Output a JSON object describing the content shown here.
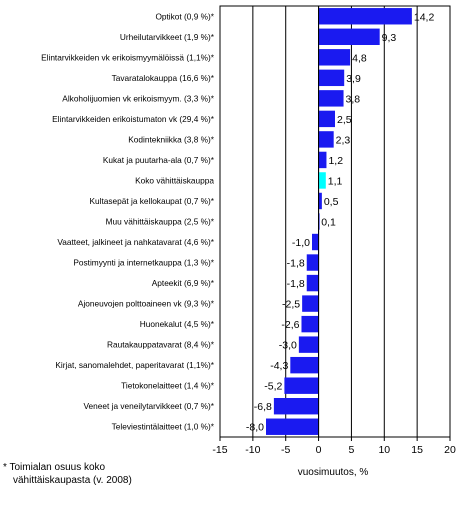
{
  "chart_data": {
    "type": "bar",
    "orientation": "horizontal",
    "categories": [
      "Optikot (0,9 %)*",
      "Urheilutarvikkeet (1,9 %)*",
      "Elintarvikkeiden vk erikoismyymälöissä (1,1%)*",
      "Tavaratalokauppa (16,6 %)*",
      "Alkoholijuomien vk erikoismyym. (3,3 %)*",
      "Elintarvikkeiden erikoistumaton vk (29,4 %)*",
      "Kodintekniikka (3,8 %)*",
      "Kukat ja puutarha-ala (0,7 %)*",
      "Koko vähittäiskauppa",
      "Kultasepät ja kellokaupat (0,7 %)*",
      "Muu vähittäiskauppa (2,5 %)*",
      "Vaatteet, jalkineet ja nahkatavarat (4,6 %)*",
      "Postimyynti ja internetkauppa (1,3 %)*",
      "Apteekit (6,9 %)*",
      "Ajoneuvojen polttoaineen vk (9,3 %)*",
      "Huonekalut (4,5 %)*",
      "Rautakauppatavarat (8,4 %)*",
      "Kirjat, sanomalehdet, paperitavarat (1,1%)*",
      "Tietokonelaitteet (1,4 %)*",
      "Veneet ja veneilytarvikkeet (0,7 %)*",
      "Televiestintälaitteet (1,0 %)*"
    ],
    "values": [
      14.2,
      9.3,
      4.8,
      3.9,
      3.8,
      2.5,
      2.3,
      1.2,
      1.1,
      0.5,
      0.1,
      -1.0,
      -1.8,
      -1.8,
      -2.5,
      -2.6,
      -3.0,
      -4.3,
      -5.2,
      -6.8,
      -8.0
    ],
    "value_labels": [
      "14,2",
      "9,3",
      "4,8",
      "3,9",
      "3,8",
      "2,5",
      "2,3",
      "1,2",
      "1,1",
      "0,5",
      "0,1",
      "-1,0",
      "-1,8",
      "-1,8",
      "-2,5",
      "-2,6",
      "-3,0",
      "-4,3",
      "-5,2",
      "-6,8",
      "-8,0"
    ],
    "highlight_category": "Koko vähittäiskauppa",
    "xlim": [
      -15,
      20
    ],
    "xticks": [
      "-15",
      "-10",
      "-5",
      "0",
      "5",
      "10",
      "15",
      "20"
    ],
    "xtick_values": [
      -15,
      -10,
      -5,
      0,
      5,
      10,
      15,
      20
    ],
    "xlabel": "vuosimuutos, %",
    "grid": true,
    "colors": {
      "bar": "#1a1af0",
      "highlight": "#00ffff",
      "grid": "#000000"
    }
  },
  "footnote": {
    "line1": "* Toimialan osuus koko",
    "line2": "vähittäiskaupasta (v. 2008)"
  }
}
